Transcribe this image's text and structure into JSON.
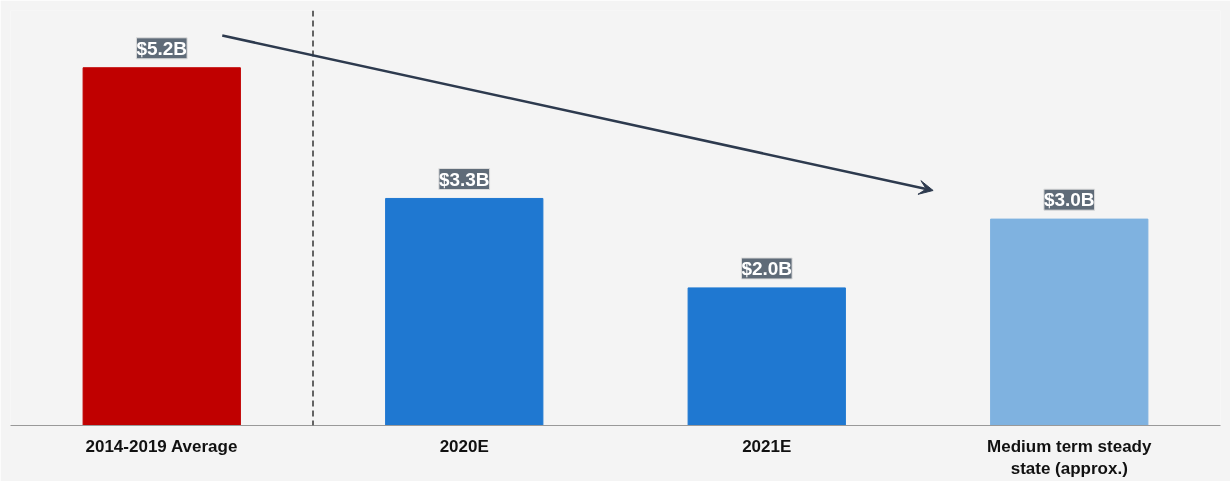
{
  "chart_data": {
    "type": "bar",
    "categories": [
      "2014-2019 Average",
      "2020E",
      "2021E",
      "Medium term steady state (approx.)"
    ],
    "values": [
      5.2,
      3.3,
      2.0,
      3.0
    ],
    "value_labels": [
      "$5.2B",
      "$3.3B",
      "$2.0B",
      "$3.0B"
    ],
    "colors": [
      "#c00000",
      "#1f78d1",
      "#1f78d1",
      "#7fb2e0"
    ],
    "grid": false
  }
}
